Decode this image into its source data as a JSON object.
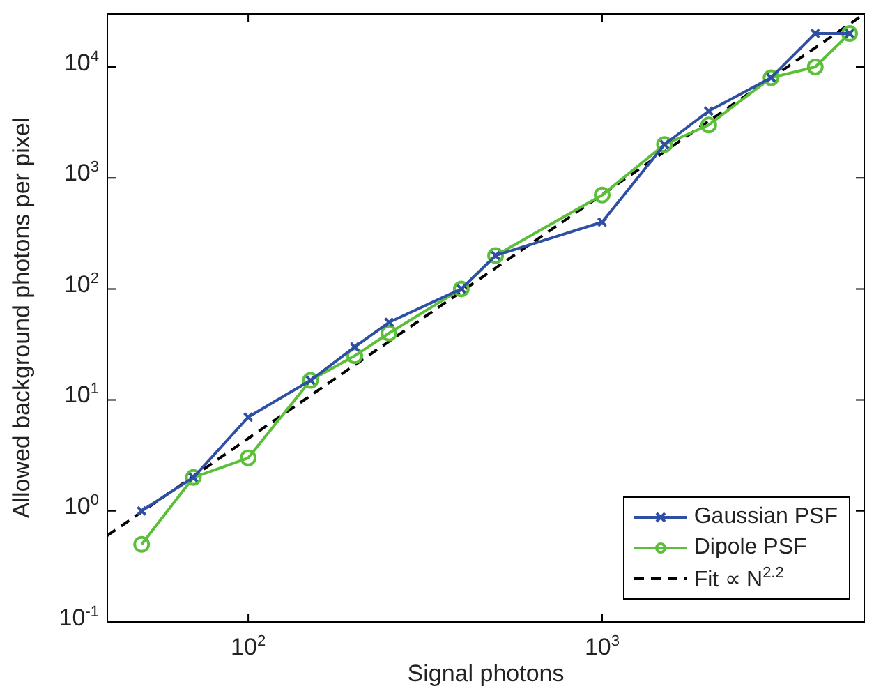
{
  "chart_data": {
    "type": "line",
    "xlabel": "Signal photons",
    "ylabel": "Allowed background photons per pixel",
    "log": "xy",
    "grid": false,
    "legend": "bottom right",
    "xlim": [
      40,
      5500
    ],
    "ylim": [
      0.1,
      30000
    ],
    "xticks": [
      {
        "value": 100,
        "label": "10$^{2}$"
      },
      {
        "value": 1000,
        "label": "10$^{3}$"
      }
    ],
    "yticks": [
      {
        "value": 0.1,
        "label": "10$^{-1}$"
      },
      {
        "value": 1,
        "label": "10$^{0}$"
      },
      {
        "value": 10,
        "label": "10$^{1}$"
      },
      {
        "value": 100,
        "label": "10$^{2}$"
      },
      {
        "value": 1000,
        "label": "10$^{3}$"
      },
      {
        "value": 10000,
        "label": "10$^{4}$"
      }
    ],
    "series": [
      {
        "name": "Gaussian PSF",
        "color": "#2e4fa3",
        "marker": "cross",
        "line_style": "solid",
        "x": [
          50,
          70,
          100,
          150,
          200,
          250,
          400,
          500,
          1000,
          1500,
          2000,
          3000,
          4000,
          5000
        ],
        "values": [
          1,
          2,
          7,
          15,
          30,
          50,
          100,
          200,
          400,
          2000,
          4000,
          8000,
          20000,
          20000
        ]
      },
      {
        "name": "Dipole PSF",
        "color": "#5cbf3a",
        "marker": "circle",
        "line_style": "solid",
        "x": [
          50,
          70,
          100,
          150,
          200,
          250,
          400,
          500,
          1000,
          1500,
          2000,
          3000,
          4000,
          5000
        ],
        "values": [
          0.5,
          2,
          3,
          15,
          25,
          40,
          100,
          200,
          700,
          2000,
          3000,
          8000,
          10000,
          20000
        ]
      },
      {
        "name": "Fit ∝ N$^{2.2}$",
        "color": "#000000",
        "marker": "none",
        "line_style": "dashed",
        "x": [
          40,
          5500
        ],
        "values": [
          0.6,
          30000
        ]
      }
    ]
  }
}
